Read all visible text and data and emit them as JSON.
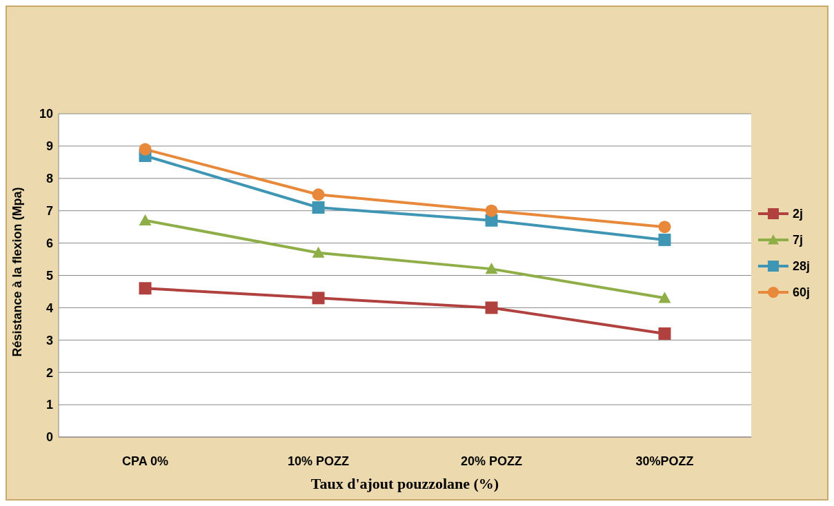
{
  "chart_data": {
    "type": "line",
    "xlabel": "Taux d'ajout pouzzolane (%)",
    "ylabel": "Résistance à la flexion (Mpa)",
    "categories": [
      "CPA 0%",
      "10% POZZ",
      "20% POZZ",
      "30%POZZ"
    ],
    "series": [
      {
        "name": "2j",
        "color": "#b0413e",
        "marker": "square",
        "values": [
          4.6,
          4.3,
          4.0,
          3.2
        ]
      },
      {
        "name": "7j",
        "color": "#8fae48",
        "marker": "triangle",
        "values": [
          6.7,
          5.7,
          5.2,
          4.3
        ]
      },
      {
        "name": "28j",
        "color": "#3e96b4",
        "marker": "square",
        "values": [
          8.7,
          7.1,
          6.7,
          6.1
        ]
      },
      {
        "name": "60j",
        "color": "#e8883a",
        "marker": "circle",
        "values": [
          8.9,
          7.5,
          7.0,
          6.5
        ]
      }
    ],
    "ylim": [
      0,
      10
    ],
    "yticks": [
      0,
      1,
      2,
      3,
      4,
      5,
      6,
      7,
      8,
      9,
      10
    ],
    "grid": "y",
    "legend": "right"
  }
}
